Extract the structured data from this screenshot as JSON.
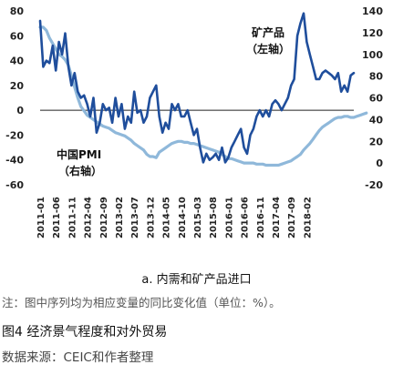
{
  "chart_data": {
    "type": "line",
    "x_start": "2011-01",
    "x_tick_labels": [
      "2011-01",
      "2011-06",
      "2011-11",
      "2012-04",
      "2012-09",
      "2013-02",
      "2013-07",
      "2013-12",
      "2014-05",
      "2014-10",
      "2015-03",
      "2015-08",
      "2016-01",
      "2016-06",
      "2016-11",
      "2017-04",
      "2017-09",
      "2018-02"
    ],
    "y_left": {
      "min": -60,
      "max": 80,
      "ticks": [
        80,
        60,
        40,
        20,
        0,
        -20,
        -40,
        -60
      ]
    },
    "y_right": {
      "min": -20,
      "max": 140,
      "ticks": [
        140,
        120,
        100,
        80,
        60,
        40,
        20,
        0,
        -20
      ]
    },
    "series": [
      {
        "name": "矿产品（左轴）",
        "axis": "left",
        "color": "#1f4e9c",
        "values": [
          72,
          35,
          40,
          38,
          52,
          32,
          55,
          45,
          62,
          35,
          20,
          30,
          15,
          10,
          12,
          5,
          -5,
          10,
          -18,
          -10,
          5,
          0,
          2,
          -10,
          10,
          -5,
          5,
          -15,
          -5,
          -10,
          15,
          -2,
          0,
          -10,
          -5,
          10,
          15,
          20,
          -5,
          -18,
          -10,
          -15,
          5,
          0,
          5,
          -5,
          -5,
          0,
          -10,
          -20,
          -15,
          -30,
          -42,
          -35,
          -40,
          -38,
          -35,
          -40,
          -30,
          -42,
          -38,
          -30,
          -25,
          -20,
          -15,
          -30,
          -35,
          -20,
          -15,
          -5,
          0,
          -5,
          0,
          -5,
          5,
          8,
          5,
          0,
          5,
          10,
          20,
          25,
          60,
          70,
          78,
          55,
          45,
          35,
          25,
          25,
          30,
          32,
          30,
          28,
          25,
          30,
          15,
          20,
          15,
          28,
          30
        ]
      },
      {
        "name": "中国PMI（右轴）",
        "axis": "right",
        "color": "#8fb8da",
        "values": [
          125,
          125,
          122,
          115,
          110,
          105,
          100,
          98,
          95,
          90,
          80,
          70,
          60,
          52,
          48,
          44,
          42,
          40,
          38,
          36,
          34,
          33,
          32,
          30,
          28,
          27,
          26,
          25,
          23,
          21,
          18,
          16,
          14,
          12,
          8,
          6,
          6,
          5,
          10,
          12,
          14,
          16,
          18,
          19,
          20,
          20,
          19,
          19,
          18,
          18,
          17,
          16,
          15,
          14,
          13,
          12,
          11,
          10,
          8,
          6,
          4,
          4,
          3,
          2,
          1,
          0,
          0,
          0,
          0,
          -1,
          -1,
          -1,
          -2,
          -2,
          -2,
          -2,
          -2,
          -1,
          0,
          1,
          2,
          4,
          6,
          8,
          12,
          15,
          18,
          22,
          26,
          30,
          33,
          35,
          37,
          39,
          41,
          42,
          42,
          43,
          43,
          42,
          42,
          43,
          44,
          45,
          46
        ]
      }
    ],
    "annotations": {
      "minerals_line1": "矿产品",
      "minerals_line2": "（左轴）",
      "pmi_line1": "中国PMI",
      "pmi_line2": "（右轴）"
    },
    "grid": false,
    "zero_line": true
  },
  "subcaption": "a.  内需和矿产品进口",
  "note": "注：图中序列均为相应变量的同比变化值（单位：%）。",
  "figure_title": "图4    经济景气程度和对外贸易",
  "source": "数据来源：CEIC和作者整理"
}
